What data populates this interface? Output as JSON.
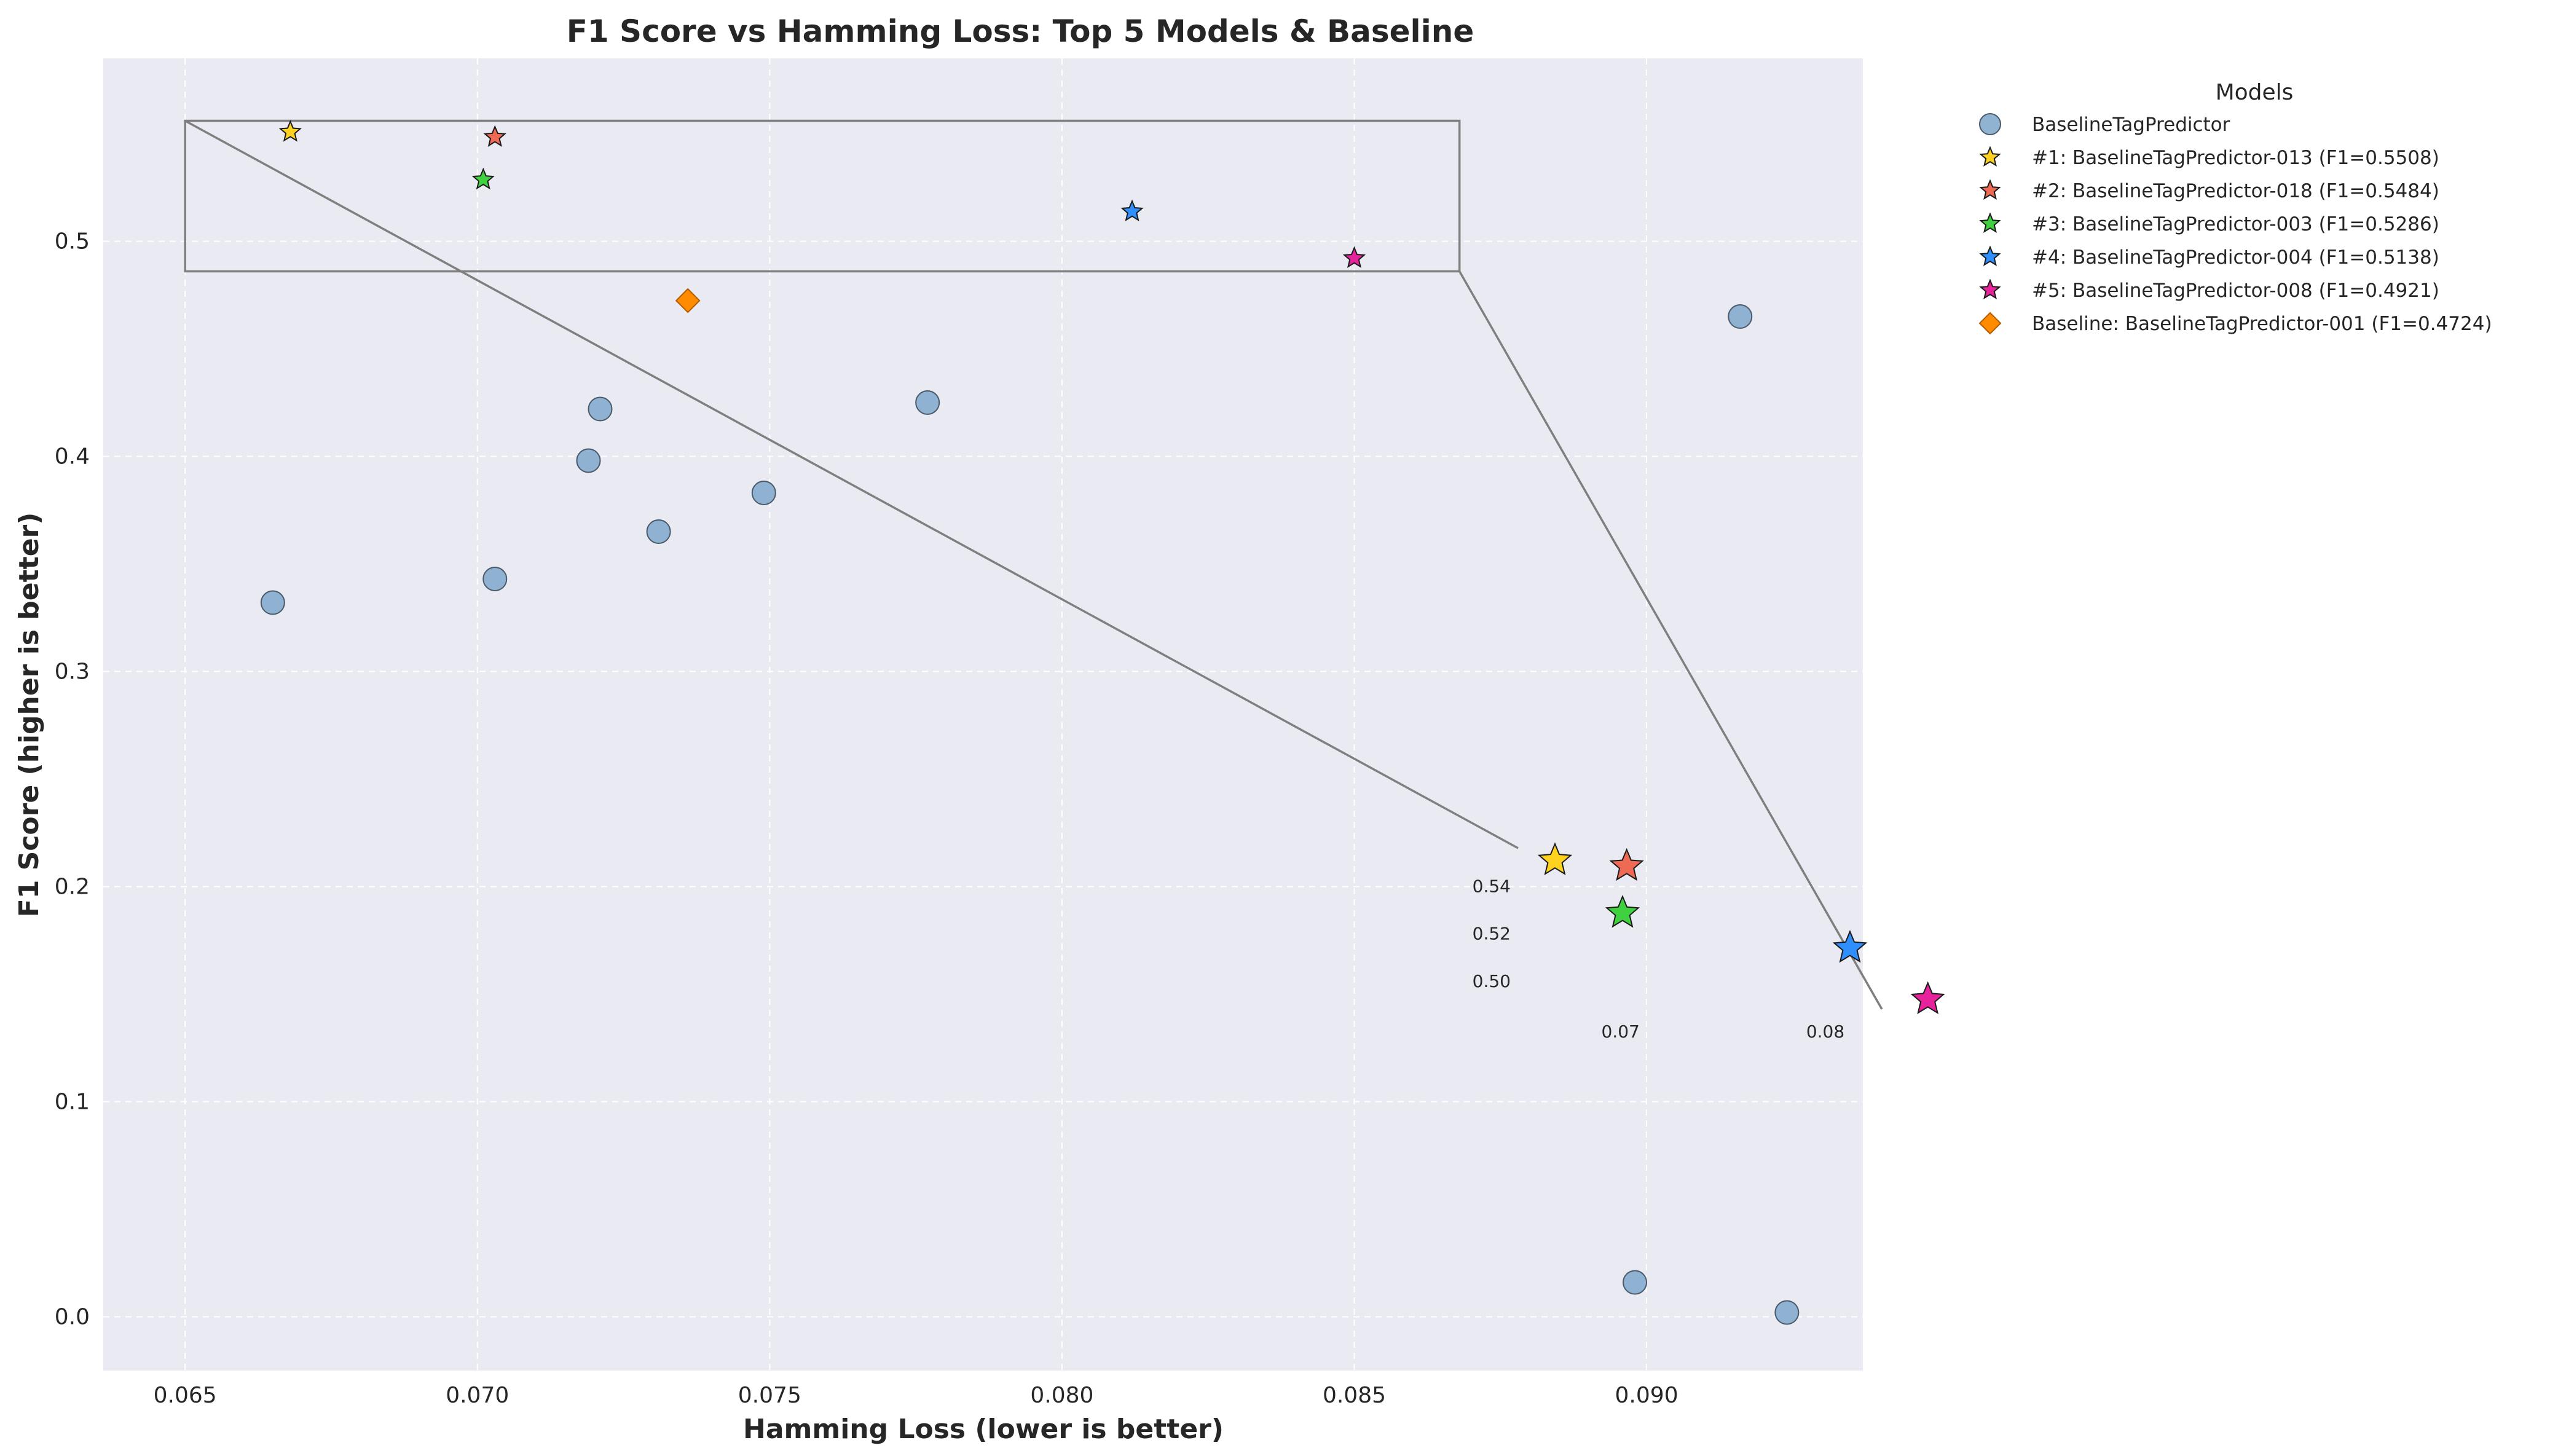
{
  "chart_data": {
    "type": "scatter",
    "title": "F1 Score vs Hamming Loss: Top 5 Models & Baseline",
    "xlabel": "Hamming Loss (lower is better)",
    "ylabel": "F1 Score (higher is better)",
    "xlim": [
      0.0636,
      0.0937
    ],
    "ylim": [
      -0.025,
      0.585
    ],
    "xticks": [
      "0.065",
      "0.070",
      "0.075",
      "0.080",
      "0.085",
      "0.090"
    ],
    "yticks": [
      "0.0",
      "0.1",
      "0.2",
      "0.3",
      "0.4",
      "0.5"
    ],
    "grid": true,
    "legend": {
      "title": "Models",
      "placement": "outside-right"
    },
    "colors": {
      "background": "#eaeaf2",
      "grid": "#ffffff",
      "baseline_points": "#8aafd0",
      "rank1": "#ffd21f",
      "rank2": "#ef6a55",
      "rank3": "#3fd13f",
      "rank4": "#2f8fff",
      "rank5": "#e6239a",
      "baseline_model": "#ff8c00",
      "inset_box": "#7f7f7f"
    },
    "series": [
      {
        "name": "BaselineTagPredictor",
        "marker": "circle",
        "color": "#8aafd0",
        "points": [
          [
            0.0665,
            0.332
          ],
          [
            0.0703,
            0.343
          ],
          [
            0.0719,
            0.398
          ],
          [
            0.0721,
            0.422
          ],
          [
            0.0731,
            0.365
          ],
          [
            0.0749,
            0.383
          ],
          [
            0.0777,
            0.425
          ],
          [
            0.0916,
            0.465
          ],
          [
            0.0898,
            0.016
          ],
          [
            0.0924,
            0.002
          ]
        ]
      },
      {
        "name": "#1: BaselineTagPredictor-013 (F1=0.5508)",
        "marker": "star",
        "color": "#ffd21f",
        "points": [
          [
            0.0668,
            0.5508
          ]
        ]
      },
      {
        "name": "#2: BaselineTagPredictor-018 (F1=0.5484)",
        "marker": "star",
        "color": "#ef6a55",
        "points": [
          [
            0.0703,
            0.5484
          ]
        ]
      },
      {
        "name": "#3: BaselineTagPredictor-003 (F1=0.5286)",
        "marker": "star",
        "color": "#3fd13f",
        "points": [
          [
            0.0701,
            0.5286
          ]
        ]
      },
      {
        "name": "#4: BaselineTagPredictor-004 (F1=0.5138)",
        "marker": "star",
        "color": "#2f8fff",
        "points": [
          [
            0.0812,
            0.5138
          ]
        ]
      },
      {
        "name": "#5: BaselineTagPredictor-008 (F1=0.4921)",
        "marker": "star",
        "color": "#e6239a",
        "points": [
          [
            0.085,
            0.4921
          ]
        ]
      },
      {
        "name": "Baseline: BaselineTagPredictor-001 (F1=0.4724)",
        "marker": "diamond",
        "color": "#ff8c00",
        "points": [
          [
            0.0736,
            0.4724
          ]
        ]
      }
    ],
    "zoom_box": {
      "x": [
        0.065,
        0.0868
      ],
      "y": [
        0.486,
        0.556
      ]
    },
    "inset": {
      "xlim": [
        0.065,
        0.083
      ],
      "ylim": [
        0.488,
        0.556
      ],
      "xticks": [
        {
          "label": "0.07",
          "value": 0.07
        },
        {
          "label": "0.08",
          "value": 0.08
        }
      ],
      "yticks": [
        {
          "label": "0.54",
          "value": 0.54
        },
        {
          "label": "0.52",
          "value": 0.52
        },
        {
          "label": "0.50",
          "value": 0.5
        }
      ]
    }
  }
}
